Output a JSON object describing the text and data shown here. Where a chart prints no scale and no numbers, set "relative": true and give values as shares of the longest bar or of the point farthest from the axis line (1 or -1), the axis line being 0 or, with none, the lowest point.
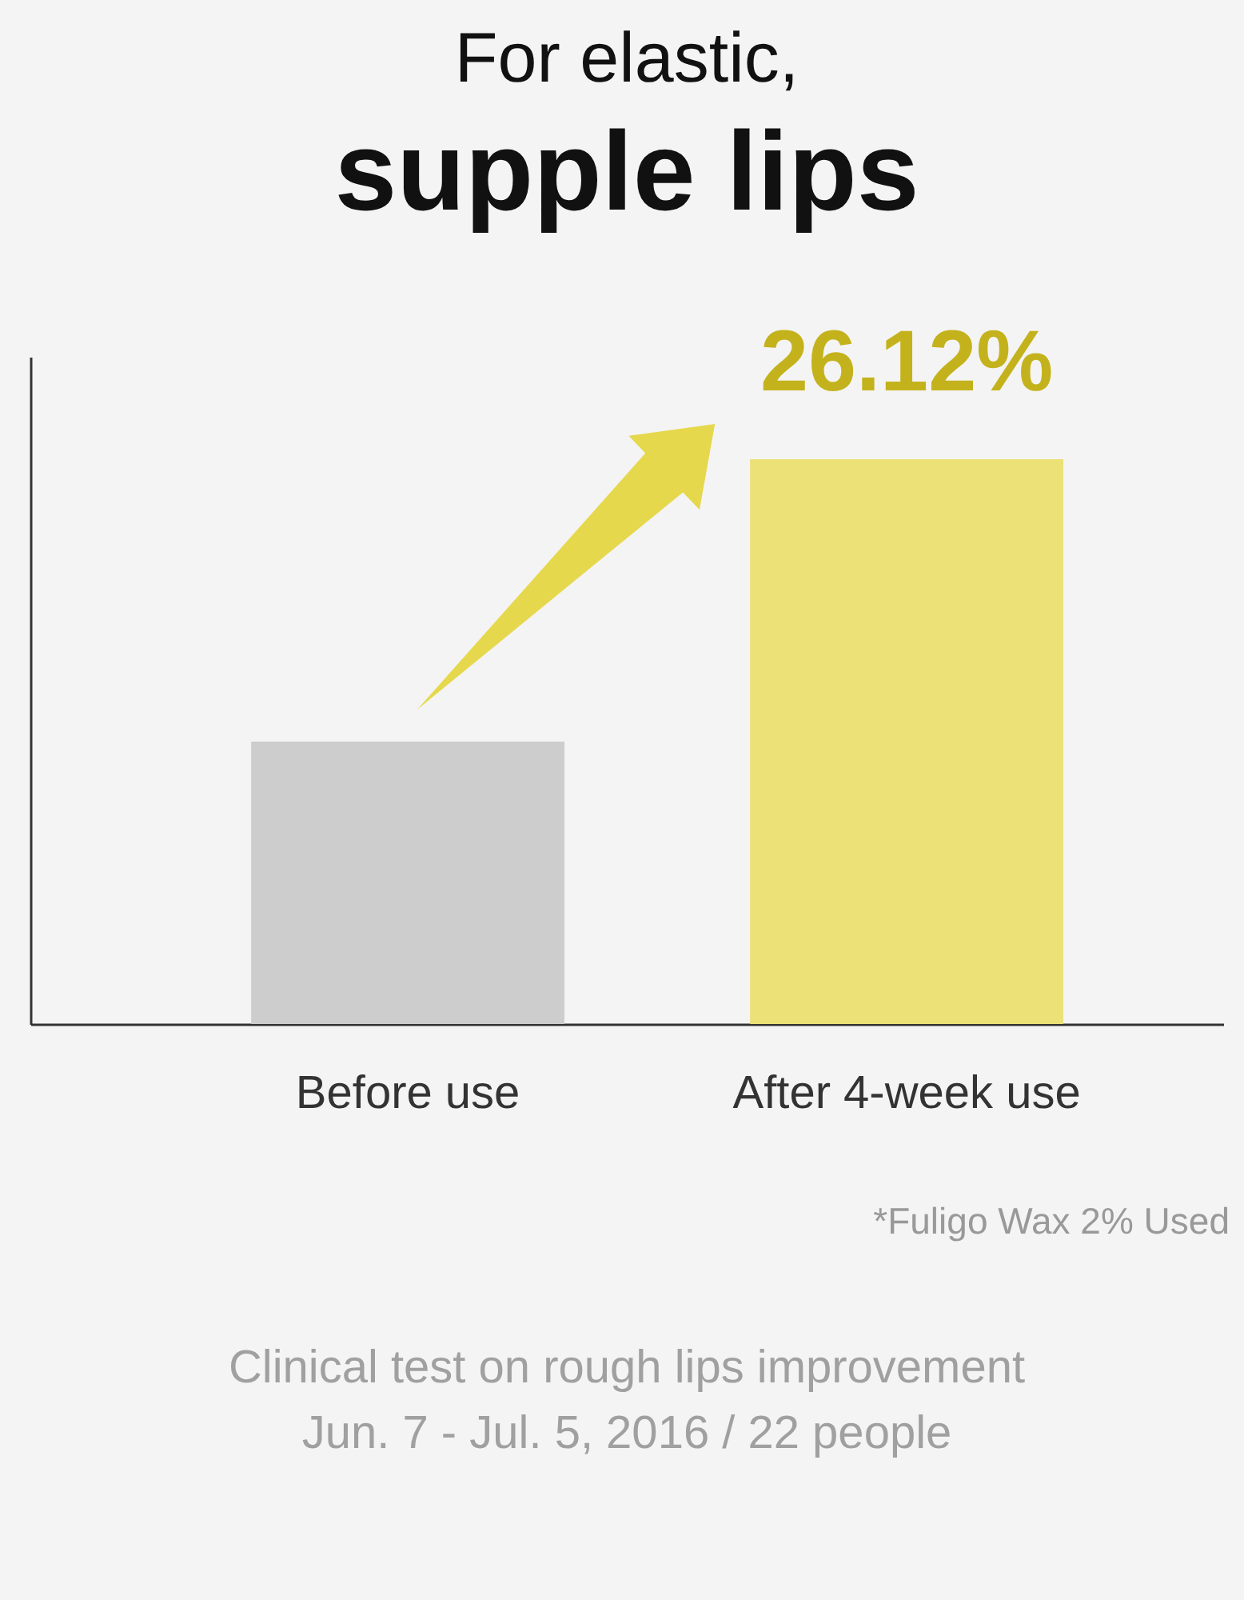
{
  "chart_data": {
    "type": "bar",
    "title": "For elastic,",
    "subtitle": "supple lips",
    "categories": [
      "Before use",
      "After 4-week use"
    ],
    "values": [
      0.5,
      1
    ],
    "colors": [
      "#cdcdcd",
      "#ebe176"
    ],
    "relative": true,
    "annotations": [
      {
        "text": "26.12%",
        "x": "After 4-week use",
        "y": 1
      },
      "*Fuligo Wax 2% Used",
      "Clinical test on rough lips improvement",
      "Jun. 7 - Jul. 5, 2016 / 22 people"
    ]
  }
}
